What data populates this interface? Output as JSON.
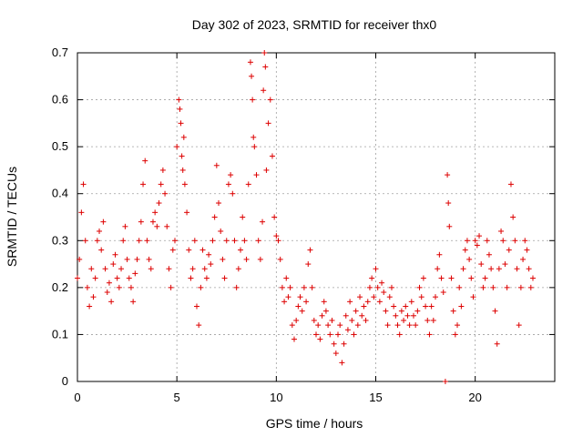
{
  "chart_data": {
    "type": "scatter",
    "title": "Day 302 of 2023, SRMTID for receiver thx0",
    "xlabel": "GPS time / hours",
    "ylabel": "SRMTID / TECUs",
    "xlim": [
      0,
      24
    ],
    "ylim": [
      0,
      0.7
    ],
    "xticks": [
      0,
      5,
      10,
      15,
      20
    ],
    "yticks": [
      0,
      0.1,
      0.2,
      0.3,
      0.4,
      0.5,
      0.6,
      0.7
    ],
    "grid": true,
    "marker": "+",
    "color": "#dd0000",
    "series": [
      {
        "name": "SRMTID",
        "points": [
          [
            0.0,
            0.22
          ],
          [
            0.1,
            0.26
          ],
          [
            0.2,
            0.36
          ],
          [
            0.3,
            0.42
          ],
          [
            0.4,
            0.3
          ],
          [
            0.5,
            0.2
          ],
          [
            0.6,
            0.16
          ],
          [
            0.7,
            0.24
          ],
          [
            0.8,
            0.18
          ],
          [
            0.9,
            0.22
          ],
          [
            1.0,
            0.3
          ],
          [
            1.1,
            0.32
          ],
          [
            1.2,
            0.28
          ],
          [
            1.3,
            0.34
          ],
          [
            1.4,
            0.24
          ],
          [
            1.5,
            0.19
          ],
          [
            1.6,
            0.21
          ],
          [
            1.7,
            0.17
          ],
          [
            1.8,
            0.25
          ],
          [
            1.9,
            0.27
          ],
          [
            2.0,
            0.22
          ],
          [
            2.1,
            0.2
          ],
          [
            2.2,
            0.24
          ],
          [
            2.3,
            0.3
          ],
          [
            2.4,
            0.33
          ],
          [
            2.5,
            0.26
          ],
          [
            2.6,
            0.22
          ],
          [
            2.7,
            0.2
          ],
          [
            2.8,
            0.17
          ],
          [
            2.9,
            0.23
          ],
          [
            3.0,
            0.26
          ],
          [
            3.1,
            0.3
          ],
          [
            3.2,
            0.34
          ],
          [
            3.3,
            0.42
          ],
          [
            3.4,
            0.47
          ],
          [
            3.5,
            0.3
          ],
          [
            3.6,
            0.26
          ],
          [
            3.7,
            0.24
          ],
          [
            3.8,
            0.34
          ],
          [
            3.9,
            0.36
          ],
          [
            4.0,
            0.33
          ],
          [
            4.1,
            0.38
          ],
          [
            4.2,
            0.42
          ],
          [
            4.3,
            0.45
          ],
          [
            4.4,
            0.4
          ],
          [
            4.5,
            0.33
          ],
          [
            4.6,
            0.24
          ],
          [
            4.7,
            0.2
          ],
          [
            4.8,
            0.28
          ],
          [
            4.9,
            0.3
          ],
          [
            5.0,
            0.5
          ],
          [
            5.1,
            0.6
          ],
          [
            5.15,
            0.58
          ],
          [
            5.2,
            0.55
          ],
          [
            5.25,
            0.48
          ],
          [
            5.3,
            0.45
          ],
          [
            5.35,
            0.52
          ],
          [
            5.4,
            0.42
          ],
          [
            5.5,
            0.36
          ],
          [
            5.6,
            0.28
          ],
          [
            5.7,
            0.22
          ],
          [
            5.8,
            0.24
          ],
          [
            5.9,
            0.3
          ],
          [
            6.0,
            0.16
          ],
          [
            6.1,
            0.12
          ],
          [
            6.2,
            0.2
          ],
          [
            6.3,
            0.28
          ],
          [
            6.4,
            0.24
          ],
          [
            6.5,
            0.22
          ],
          [
            6.6,
            0.27
          ],
          [
            6.7,
            0.25
          ],
          [
            6.8,
            0.3
          ],
          [
            6.9,
            0.35
          ],
          [
            7.0,
            0.46
          ],
          [
            7.1,
            0.38
          ],
          [
            7.2,
            0.32
          ],
          [
            7.3,
            0.26
          ],
          [
            7.4,
            0.22
          ],
          [
            7.5,
            0.3
          ],
          [
            7.6,
            0.42
          ],
          [
            7.7,
            0.44
          ],
          [
            7.8,
            0.4
          ],
          [
            7.9,
            0.3
          ],
          [
            8.0,
            0.2
          ],
          [
            8.1,
            0.24
          ],
          [
            8.2,
            0.28
          ],
          [
            8.3,
            0.35
          ],
          [
            8.4,
            0.3
          ],
          [
            8.5,
            0.26
          ],
          [
            8.6,
            0.42
          ],
          [
            8.7,
            0.68
          ],
          [
            8.75,
            0.65
          ],
          [
            8.8,
            0.6
          ],
          [
            8.85,
            0.52
          ],
          [
            8.9,
            0.5
          ],
          [
            9.0,
            0.44
          ],
          [
            9.1,
            0.3
          ],
          [
            9.2,
            0.26
          ],
          [
            9.3,
            0.34
          ],
          [
            9.35,
            0.62
          ],
          [
            9.4,
            0.7
          ],
          [
            9.45,
            0.67
          ],
          [
            9.5,
            0.45
          ],
          [
            9.6,
            0.55
          ],
          [
            9.7,
            0.6
          ],
          [
            9.8,
            0.48
          ],
          [
            9.9,
            0.35
          ],
          [
            10.0,
            0.31
          ],
          [
            10.1,
            0.3
          ],
          [
            10.2,
            0.26
          ],
          [
            10.3,
            0.2
          ],
          [
            10.4,
            0.17
          ],
          [
            10.5,
            0.22
          ],
          [
            10.6,
            0.18
          ],
          [
            10.7,
            0.2
          ],
          [
            10.8,
            0.12
          ],
          [
            10.9,
            0.09
          ],
          [
            11.0,
            0.13
          ],
          [
            11.1,
            0.16
          ],
          [
            11.2,
            0.18
          ],
          [
            11.3,
            0.15
          ],
          [
            11.4,
            0.2
          ],
          [
            11.5,
            0.17
          ],
          [
            11.6,
            0.25
          ],
          [
            11.7,
            0.28
          ],
          [
            11.8,
            0.2
          ],
          [
            11.9,
            0.13
          ],
          [
            12.0,
            0.1
          ],
          [
            12.1,
            0.12
          ],
          [
            12.2,
            0.09
          ],
          [
            12.3,
            0.14
          ],
          [
            12.4,
            0.17
          ],
          [
            12.5,
            0.15
          ],
          [
            12.6,
            0.12
          ],
          [
            12.7,
            0.1
          ],
          [
            12.8,
            0.13
          ],
          [
            12.9,
            0.08
          ],
          [
            13.0,
            0.06
          ],
          [
            13.1,
            0.1
          ],
          [
            13.2,
            0.12
          ],
          [
            13.3,
            0.04
          ],
          [
            13.4,
            0.08
          ],
          [
            13.5,
            0.14
          ],
          [
            13.6,
            0.11
          ],
          [
            13.7,
            0.17
          ],
          [
            13.8,
            0.13
          ],
          [
            13.9,
            0.1
          ],
          [
            14.0,
            0.15
          ],
          [
            14.1,
            0.12
          ],
          [
            14.2,
            0.18
          ],
          [
            14.3,
            0.14
          ],
          [
            14.4,
            0.16
          ],
          [
            14.5,
            0.13
          ],
          [
            14.6,
            0.17
          ],
          [
            14.7,
            0.2
          ],
          [
            14.8,
            0.22
          ],
          [
            14.9,
            0.18
          ],
          [
            15.0,
            0.24
          ],
          [
            15.1,
            0.2
          ],
          [
            15.2,
            0.17
          ],
          [
            15.3,
            0.21
          ],
          [
            15.4,
            0.19
          ],
          [
            15.5,
            0.15
          ],
          [
            15.6,
            0.12
          ],
          [
            15.7,
            0.18
          ],
          [
            15.8,
            0.2
          ],
          [
            15.9,
            0.16
          ],
          [
            16.0,
            0.14
          ],
          [
            16.1,
            0.12
          ],
          [
            16.2,
            0.1
          ],
          [
            16.3,
            0.15
          ],
          [
            16.4,
            0.13
          ],
          [
            16.5,
            0.16
          ],
          [
            16.6,
            0.14
          ],
          [
            16.7,
            0.12
          ],
          [
            16.8,
            0.17
          ],
          [
            16.9,
            0.14
          ],
          [
            17.0,
            0.12
          ],
          [
            17.1,
            0.15
          ],
          [
            17.2,
            0.2
          ],
          [
            17.3,
            0.18
          ],
          [
            17.4,
            0.22
          ],
          [
            17.5,
            0.16
          ],
          [
            17.6,
            0.13
          ],
          [
            17.7,
            0.1
          ],
          [
            17.8,
            0.16
          ],
          [
            17.9,
            0.13
          ],
          [
            18.0,
            0.18
          ],
          [
            18.1,
            0.24
          ],
          [
            18.2,
            0.27
          ],
          [
            18.3,
            0.22
          ],
          [
            18.4,
            0.19
          ],
          [
            18.5,
            0.0
          ],
          [
            18.6,
            0.44
          ],
          [
            18.65,
            0.38
          ],
          [
            18.7,
            0.33
          ],
          [
            18.8,
            0.22
          ],
          [
            18.9,
            0.15
          ],
          [
            19.0,
            0.1
          ],
          [
            19.1,
            0.12
          ],
          [
            19.2,
            0.2
          ],
          [
            19.3,
            0.16
          ],
          [
            19.4,
            0.24
          ],
          [
            19.5,
            0.28
          ],
          [
            19.6,
            0.3
          ],
          [
            19.7,
            0.26
          ],
          [
            19.8,
            0.22
          ],
          [
            19.9,
            0.18
          ],
          [
            20.0,
            0.3
          ],
          [
            20.1,
            0.29
          ],
          [
            20.2,
            0.31
          ],
          [
            20.3,
            0.25
          ],
          [
            20.4,
            0.2
          ],
          [
            20.5,
            0.22
          ],
          [
            20.6,
            0.3
          ],
          [
            20.7,
            0.27
          ],
          [
            20.8,
            0.24
          ],
          [
            20.9,
            0.2
          ],
          [
            21.0,
            0.15
          ],
          [
            21.1,
            0.08
          ],
          [
            21.2,
            0.24
          ],
          [
            21.3,
            0.32
          ],
          [
            21.4,
            0.3
          ],
          [
            21.5,
            0.25
          ],
          [
            21.6,
            0.2
          ],
          [
            21.7,
            0.28
          ],
          [
            21.8,
            0.42
          ],
          [
            21.9,
            0.35
          ],
          [
            22.0,
            0.3
          ],
          [
            22.1,
            0.24
          ],
          [
            22.2,
            0.12
          ],
          [
            22.3,
            0.2
          ],
          [
            22.4,
            0.26
          ],
          [
            22.5,
            0.3
          ],
          [
            22.6,
            0.28
          ],
          [
            22.7,
            0.24
          ],
          [
            22.8,
            0.2
          ],
          [
            22.9,
            0.22
          ]
        ]
      }
    ]
  }
}
